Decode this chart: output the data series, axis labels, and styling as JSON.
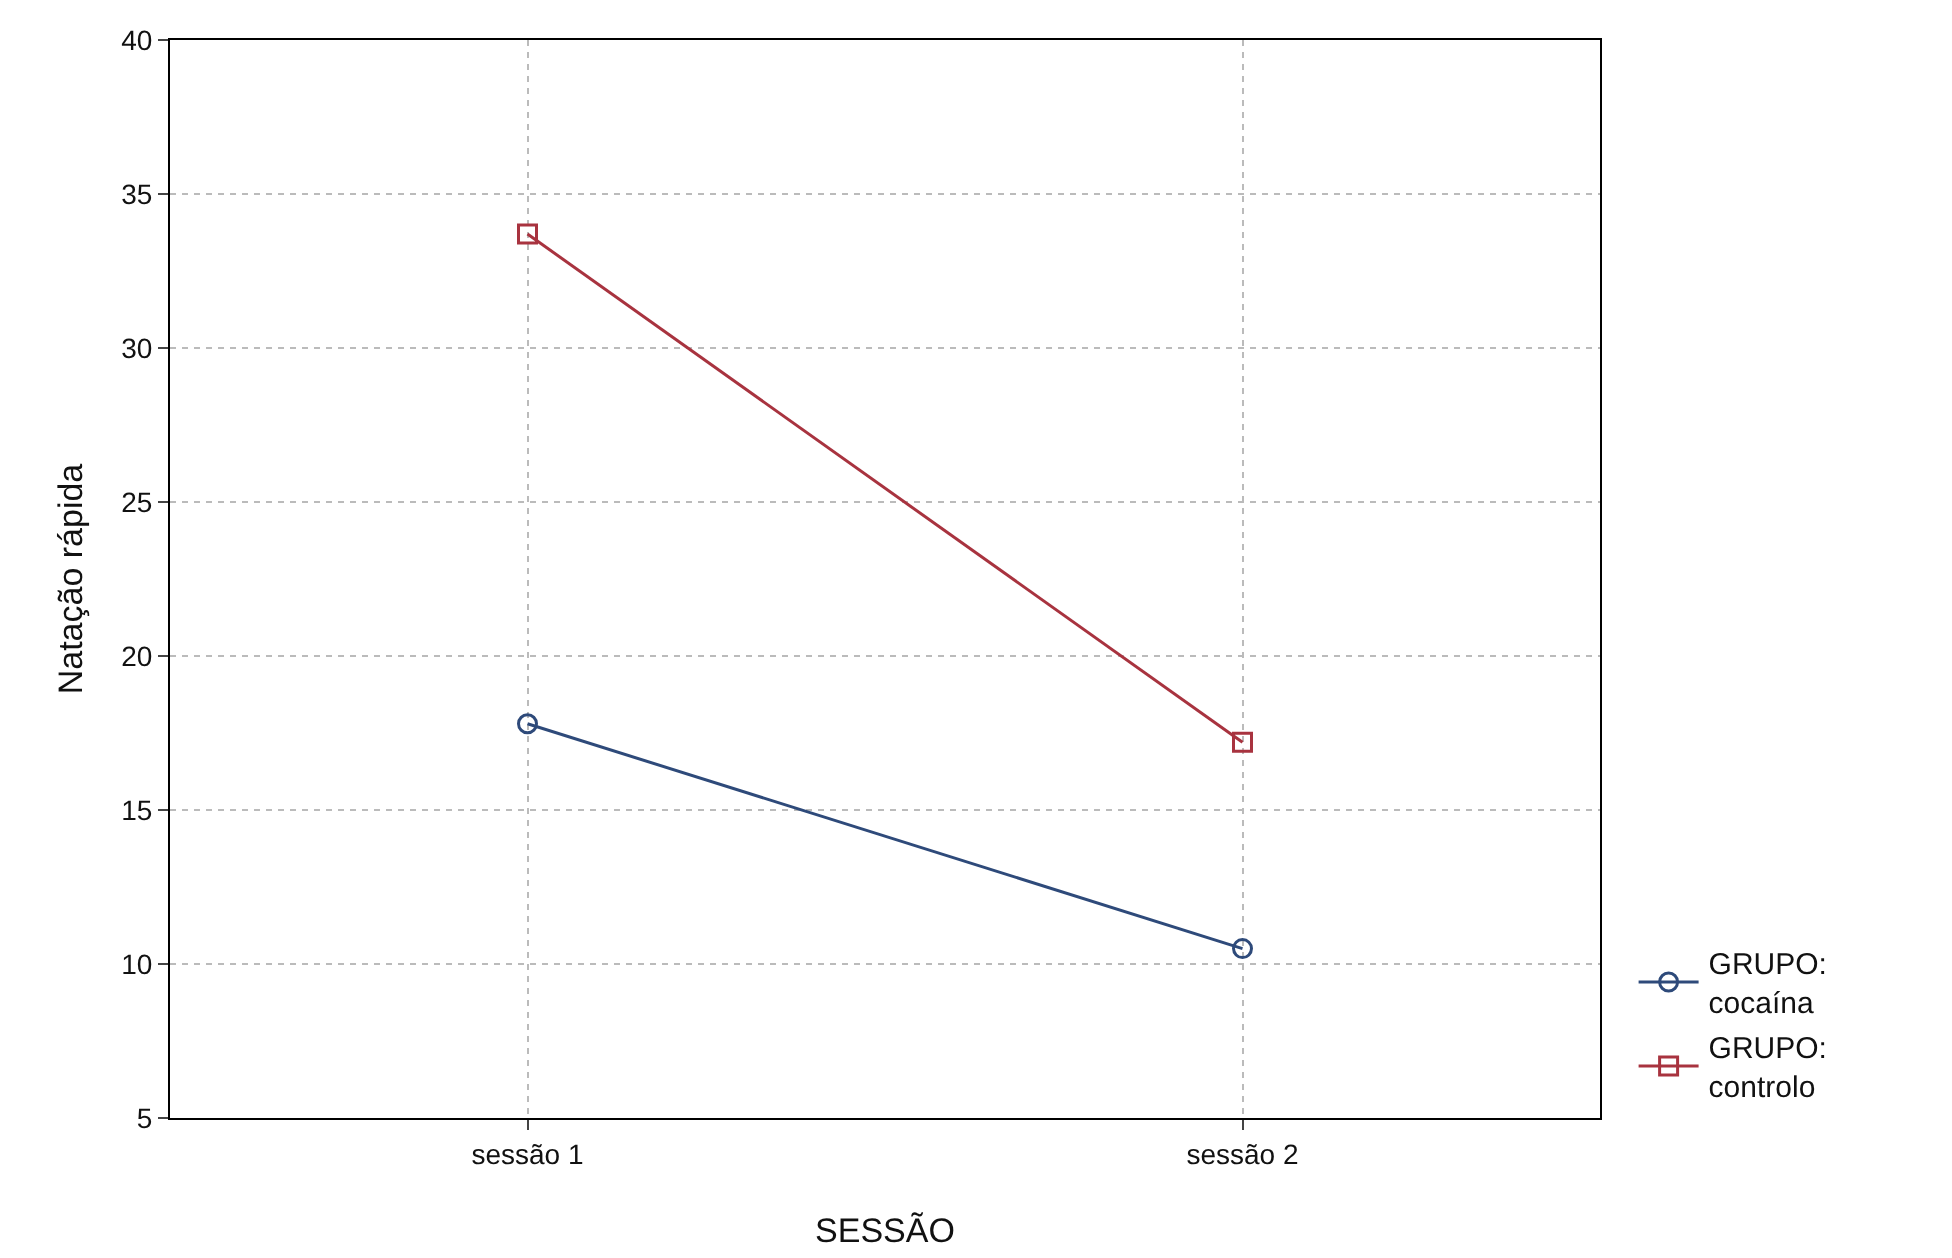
{
  "chart_data": {
    "type": "line",
    "xlabel": "SESSÃO",
    "ylabel": "Natação rápida",
    "categories": [
      "sessão 1",
      "sessão 2"
    ],
    "series": [
      {
        "name": "GRUPO: cocaína",
        "color": "#2e4a7a",
        "values": [
          17.8,
          10.5
        ],
        "marker": "circle"
      },
      {
        "name": "GRUPO: controlo",
        "color": "#a8333f",
        "values": [
          33.7,
          17.2
        ],
        "marker": "square"
      }
    ],
    "ylim": [
      5,
      40
    ],
    "yticks": [
      5,
      10,
      15,
      20,
      25,
      30,
      35,
      40
    ],
    "grid": true,
    "legend": "bottom right",
    "line_style": "solid"
  }
}
